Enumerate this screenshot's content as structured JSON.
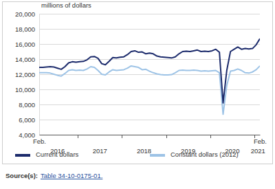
{
  "chart_data": {
    "type": "line",
    "y_label": "millions of dollars",
    "categories": [
      "Feb.",
      null,
      null,
      null,
      null,
      null,
      null,
      null,
      null,
      null,
      null,
      null,
      null,
      null,
      null,
      null,
      null,
      null,
      null,
      null,
      null,
      null,
      null,
      null,
      null,
      null,
      null,
      null,
      null,
      null,
      null,
      null,
      null,
      null,
      null,
      null,
      null,
      null,
      null,
      null,
      null,
      null,
      null,
      null,
      null,
      null,
      null,
      null,
      null,
      null,
      null,
      null,
      null,
      null,
      null,
      null,
      null,
      null,
      null,
      null,
      "Feb."
    ],
    "category_groups": [
      {
        "label": "2016",
        "span": 11
      },
      {
        "label": "2017",
        "span": 12
      },
      {
        "label": "2018",
        "span": 12
      },
      {
        "label": "2019",
        "span": 12
      },
      {
        "label": "2020",
        "span": 12
      },
      {
        "label": "2021",
        "span": 2
      }
    ],
    "series": [
      {
        "name": "Current dollars",
        "color": "#1b2a6b",
        "values": [
          12900,
          12900,
          12950,
          13000,
          12950,
          12800,
          12650,
          13000,
          13500,
          13650,
          13600,
          13650,
          13700,
          13900,
          14300,
          14350,
          14100,
          13400,
          13250,
          13700,
          14200,
          14150,
          14250,
          14300,
          14600,
          15000,
          15100,
          14900,
          14950,
          14700,
          14800,
          14700,
          14400,
          14300,
          14250,
          14200,
          14150,
          14300,
          14700,
          15000,
          15050,
          15000,
          15100,
          15200,
          15000,
          15050,
          15000,
          15100,
          15300,
          14900,
          8200,
          12500,
          15000,
          15300,
          15600,
          15300,
          15400,
          15350,
          15400,
          15900,
          16700
        ]
      },
      {
        "name": "Constant dollars (2012)",
        "color": "#9dc3e6",
        "values": [
          12200,
          12200,
          12200,
          12150,
          12000,
          11850,
          11750,
          12100,
          12500,
          12600,
          12500,
          12550,
          12500,
          12700,
          13000,
          12900,
          12500,
          12000,
          11900,
          12300,
          12600,
          12500,
          12550,
          12600,
          12800,
          13100,
          13000,
          12900,
          12600,
          12650,
          12400,
          12200,
          12050,
          11950,
          11900,
          11900,
          11950,
          12200,
          12500,
          12550,
          12500,
          12500,
          12550,
          12500,
          12400,
          12450,
          12400,
          12450,
          12500,
          12200,
          6700,
          10500,
          12400,
          12500,
          12700,
          12500,
          12200,
          12150,
          12300,
          12600,
          13100
        ]
      }
    ],
    "ylim": [
      4000,
      20000
    ],
    "yticks": [
      {
        "value": 4000,
        "label": "4,000"
      },
      {
        "value": 6000,
        "label": "6,000"
      },
      {
        "value": 8000,
        "label": "8,000"
      },
      {
        "value": 10000,
        "label": "10,000"
      },
      {
        "value": 12000,
        "label": "12,000"
      },
      {
        "value": 14000,
        "label": "14,000"
      },
      {
        "value": 16000,
        "label": "16,000"
      },
      {
        "value": 18000,
        "label": "18,000"
      },
      {
        "value": 20000,
        "label": "20,000"
      }
    ],
    "grid": true,
    "legend": "bottom",
    "source": {
      "label": "Source(s):",
      "text": "Table 34-10-0175-01."
    }
  }
}
